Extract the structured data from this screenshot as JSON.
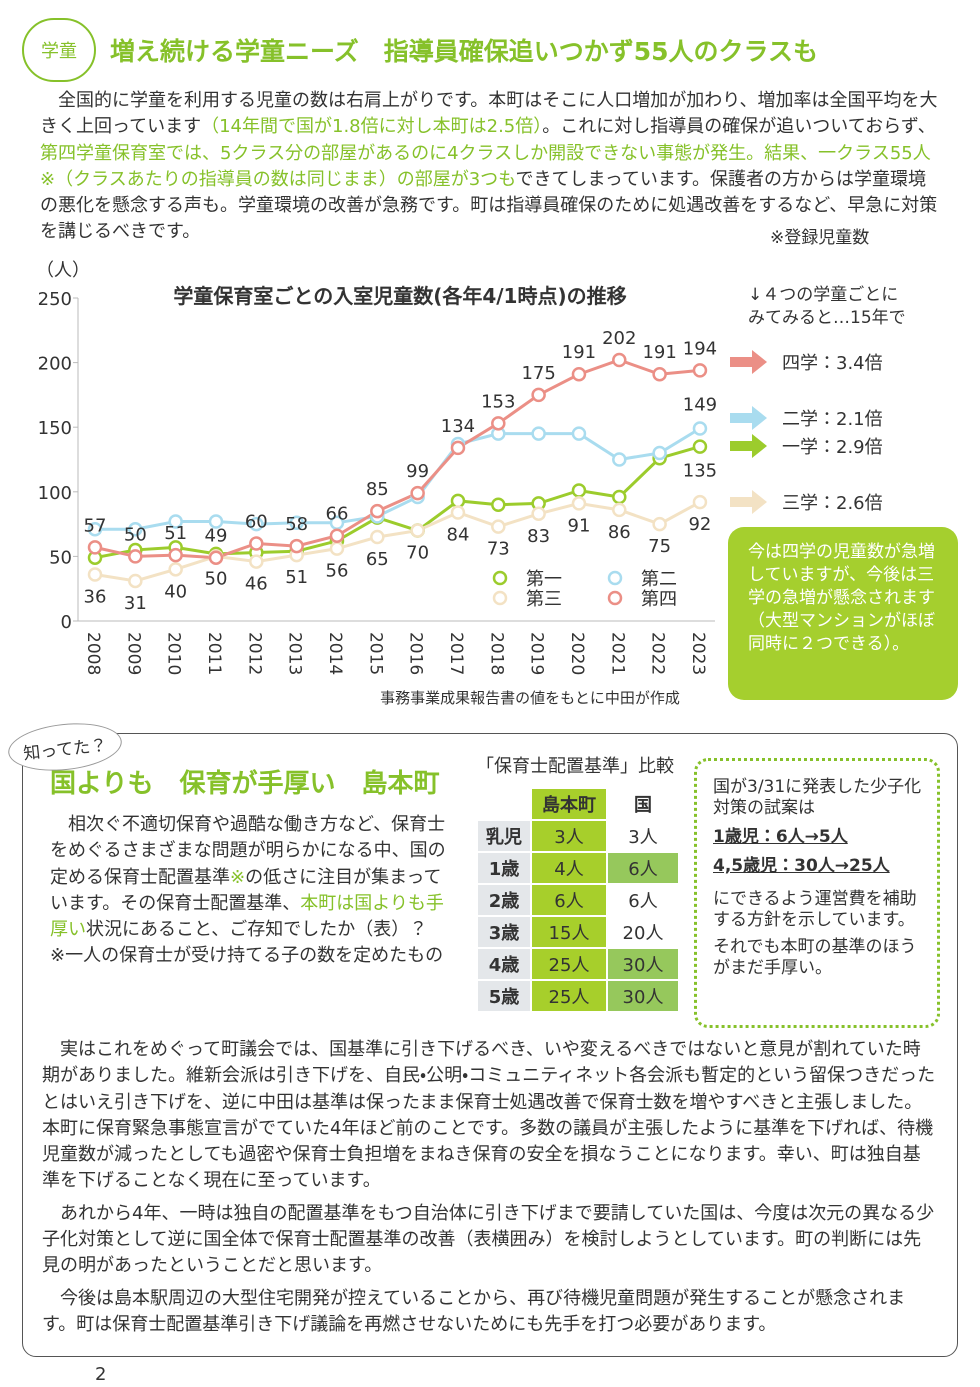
{
  "header": {
    "badge": "学童",
    "title": "増え続ける学童ニーズ　指導員確保追いつかず55人のクラスも"
  },
  "intro": {
    "segments": [
      {
        "text": "　全国的に学童を利用する児童の数は右肩上がりです。本町はそこに人口増加が加わり、増加率は全国平均を大きく上回っています"
      },
      {
        "text": "（14年間で国が1.8倍に対し本町は2.5倍）",
        "emphasis": true
      },
      {
        "text": "。これに対し指導員の確保が追いついておらず、"
      },
      {
        "text": "第四学童保育室では、5クラス分の部屋があるのに4クラスしか開設できない事態が発生。結果、一クラス55人※（クラスあたりの指導員の数は同じまま）の部屋が3つも",
        "emphasis": true
      },
      {
        "text": "できてしまっています。保護者の方からは学童環境の悪化を懸念する声も。学童環境の改善が急務です。町は指導員確保のために処遇改善をするなど、早急に対策を講じるべきです。"
      }
    ],
    "note": "※登録児童数"
  },
  "chart_data": {
    "type": "line",
    "title": "学童保育室ごとの入室児童数(各年4/1時点)の推移",
    "y_label": "（人）",
    "source": "事務事業成果報告書の値をもとに中田が作成",
    "categories": [
      "2008",
      "2009",
      "2010",
      "2011",
      "2012",
      "2013",
      "2014",
      "2015",
      "2016",
      "2017",
      "2018",
      "2019",
      "2020",
      "2021",
      "2022",
      "2023"
    ],
    "ylim": [
      0,
      250
    ],
    "yticks": [
      0,
      50,
      100,
      150,
      200,
      250
    ],
    "grid": false,
    "series": [
      {
        "name": "第一",
        "color": "#9ccc2c",
        "values": [
          49,
          55,
          57,
          52,
          53,
          54,
          62,
          80,
          70,
          93,
          90,
          91,
          101,
          96,
          126,
          135
        ]
      },
      {
        "name": "第二",
        "color": "#a9dcef",
        "values": [
          71,
          71,
          77,
          77,
          75,
          76,
          76,
          81,
          96,
          137,
          145,
          145,
          145,
          125,
          130,
          149
        ]
      },
      {
        "name": "第三",
        "color": "#f3e2c4",
        "values": [
          36,
          31,
          40,
          50,
          46,
          51,
          56,
          65,
          70,
          84,
          73,
          83,
          91,
          86,
          75,
          92
        ]
      },
      {
        "name": "第四",
        "color": "#eb8f86",
        "values": [
          57,
          50,
          51,
          49,
          60,
          58,
          66,
          85,
          99,
          134,
          153,
          175,
          191,
          202,
          191,
          194
        ]
      }
    ],
    "annotation": "↓４つの学童ごとに\nみてみると…15年で",
    "ratios": [
      {
        "label": "四学：3.4倍",
        "color": "#eb8f86"
      },
      {
        "label": "二学：2.1倍",
        "color": "#a9dcef"
      },
      {
        "label": "一学：2.9倍",
        "color": "#9ccc2c"
      },
      {
        "label": "三学：2.6倍",
        "color": "#f3e2c4"
      }
    ],
    "comment": "今は四学の児童数が急増していますが、今後は三学の急増が懸念されます（大型マンションがほぼ同時に２つできる）。"
  },
  "section": {
    "badge": "知ってた？",
    "title": "国よりも　保育が手厚い　島本町",
    "body": [
      {
        "text": "　相次ぐ不適切保育や過酷な働き方など、保育士をめぐるさまざまな問題が明らかになる中、国の定める保育士配置基準"
      },
      {
        "text": "※",
        "emphasis": true
      },
      {
        "text": "の低さに注目が集まっています。その保育士配置基準、"
      },
      {
        "text": "本町は国よりも手厚い",
        "emphasis": true
      },
      {
        "text": "状況にあること、ご存知でしたか（表）？"
      }
    ],
    "footnote": "※一人の保育士が受け持てる子の数を定めたもの",
    "table": {
      "title": "「保育士配置基準」比較",
      "header": [
        "島本町",
        "国"
      ],
      "rows": [
        [
          "乳児",
          "3人",
          "3人"
        ],
        [
          "1歳",
          "4人",
          "6人"
        ],
        [
          "2歳",
          "6人",
          "6人"
        ],
        [
          "3歳",
          "15人",
          "20人"
        ],
        [
          "4歳",
          "25人",
          "30人"
        ],
        [
          "5歳",
          "25人",
          "30人"
        ]
      ]
    },
    "callout": {
      "intro": "国が3/31に発表した少子化対策の試案は",
      "items": [
        "1歳児：6人→5人",
        "4,5歳児：30人→25人"
      ],
      "outro": "にできるよう運営費を補助する方針を示しています。",
      "conclusion": "それでも本町の基準のほうがまだ手厚い。"
    },
    "paragraphs": [
      "　実はこれをめぐって町議会では、国基準に引き下げるべき、いや変えるべきではないと意見が割れていた時期がありました。維新会派は引き下げを、自民・公明・コミュニティネット各会派も暫定的という留保つきだったとはいえ引き下げを、逆に中田は基準は保ったまま保育士処遇改善で保育士数を増やすべきと主張しました。本町に保育緊急事態宣言がでていた4年ほど前のことです。多数の議員が主張したように基準を下げれば、待機児童数が減ったとしても過密や保育士負担増をまねき保育の安全を損なうことになります。幸い、町は独自基準を下げることなく現在に至っています。",
      "　あれから4年、一時は独自の配置基準をもつ自治体に引き下げまで要請していた国は、今度は次元の異なる少子化対策として逆に国全体で保育士配置基準の改善（表横囲み）を検討しようとしています。町の判断には先見の明があったということだと思います。",
      "　今後は島本駅周辺の大型住宅開発が控えていることから、再び待機児童問題が発生することが懸念されます。町は保育士配置基準引き下げ議論を再燃させないためにも先手を打つ必要があります。"
    ]
  },
  "page_number": "2"
}
